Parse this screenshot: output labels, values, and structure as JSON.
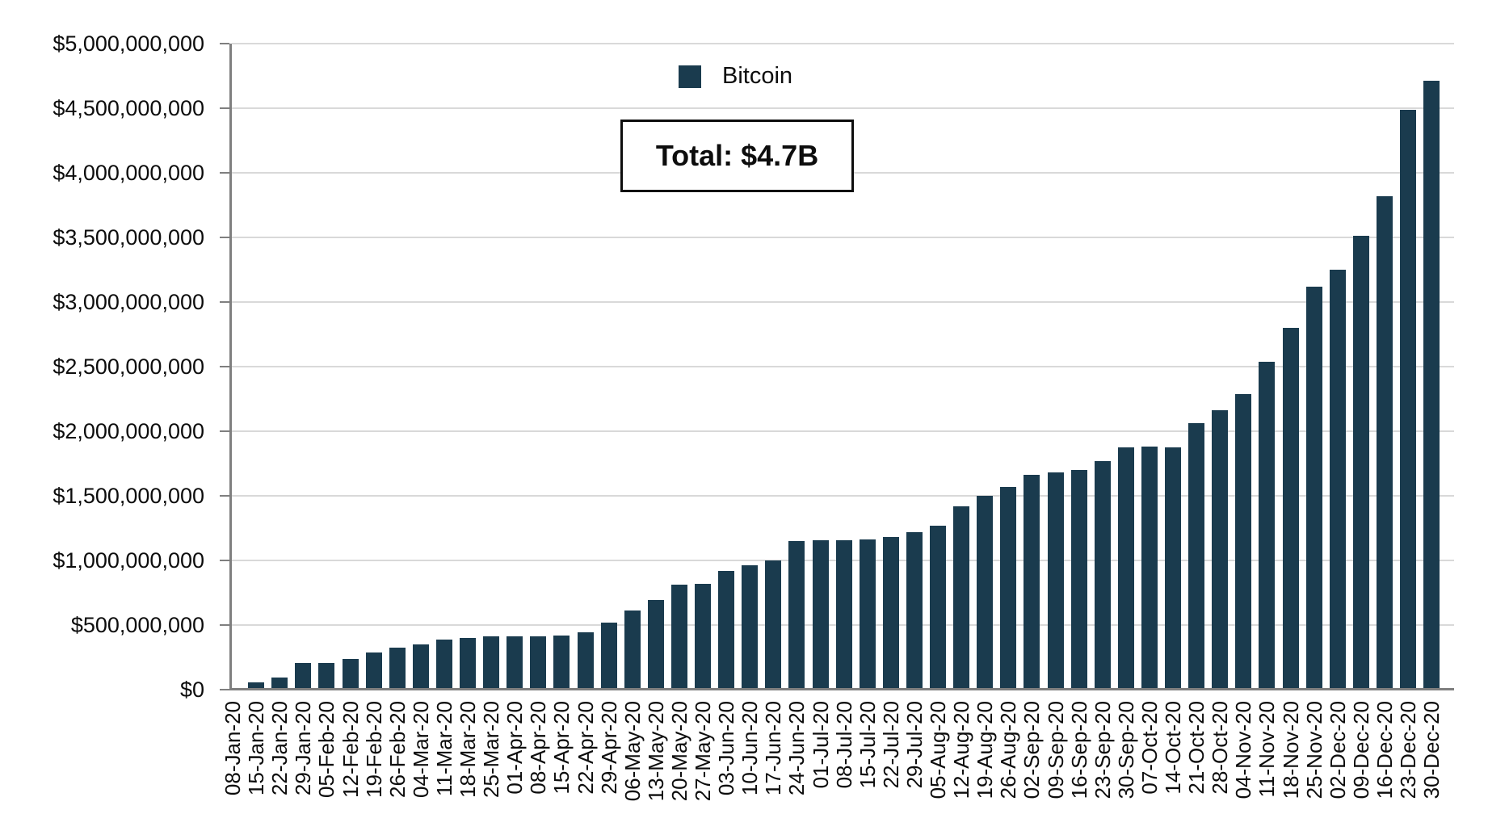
{
  "legend": {
    "series_label": "Bitcoin"
  },
  "annotation": {
    "total_label": "Total: $4.7B"
  },
  "colors": {
    "bar": "#1a3b4e",
    "gridline": "#d9d9d9",
    "axis": "#7f7f7f",
    "text": "#0d0d0d"
  },
  "chart_data": {
    "type": "bar",
    "title": "",
    "xlabel": "",
    "ylabel": "",
    "series_name": "Bitcoin",
    "legend_position": "top-center",
    "grid": true,
    "ylim": [
      0,
      5000000000
    ],
    "ytick_interval": 500000000,
    "ytick_labels": [
      "$0",
      "$500,000,000",
      "$1,000,000,000",
      "$1,500,000,000",
      "$2,000,000,000",
      "$2,500,000,000",
      "$3,000,000,000",
      "$3,500,000,000",
      "$4,000,000,000",
      "$4,500,000,000",
      "$5,000,000,000"
    ],
    "annotation_total": "Total: $4.7B",
    "categories": [
      "08-Jan-20",
      "15-Jan-20",
      "22-Jan-20",
      "29-Jan-20",
      "05-Feb-20",
      "12-Feb-20",
      "19-Feb-20",
      "26-Feb-20",
      "04-Mar-20",
      "11-Mar-20",
      "18-Mar-20",
      "25-Mar-20",
      "01-Apr-20",
      "08-Apr-20",
      "15-Apr-20",
      "22-Apr-20",
      "29-Apr-20",
      "06-May-20",
      "13-May-20",
      "20-May-20",
      "27-May-20",
      "03-Jun-20",
      "10-Jun-20",
      "17-Jun-20",
      "24-Jun-20",
      "01-Jul-20",
      "08-Jul-20",
      "15-Jul-20",
      "22-Jul-20",
      "29-Jul-20",
      "05-Aug-20",
      "12-Aug-20",
      "19-Aug-20",
      "26-Aug-20",
      "02-Sep-20",
      "09-Sep-20",
      "16-Sep-20",
      "23-Sep-20",
      "30-Sep-20",
      "07-Oct-20",
      "14-Oct-20",
      "21-Oct-20",
      "28-Oct-20",
      "04-Nov-20",
      "11-Nov-20",
      "18-Nov-20",
      "25-Nov-20",
      "02-Dec-20",
      "09-Dec-20",
      "16-Dec-20",
      "23-Dec-20",
      "30-Dec-20"
    ],
    "values": [
      5000000,
      55000000,
      95000000,
      205000000,
      205000000,
      240000000,
      290000000,
      325000000,
      350000000,
      385000000,
      400000000,
      410000000,
      410000000,
      410000000,
      420000000,
      445000000,
      520000000,
      610000000,
      695000000,
      810000000,
      820000000,
      920000000,
      960000000,
      1000000000,
      1150000000,
      1155000000,
      1155000000,
      1160000000,
      1180000000,
      1220000000,
      1270000000,
      1420000000,
      1500000000,
      1570000000,
      1660000000,
      1680000000,
      1700000000,
      1770000000,
      1875000000,
      1880000000,
      1875000000,
      2060000000,
      2160000000,
      2290000000,
      2540000000,
      2800000000,
      3120000000,
      3250000000,
      3510000000,
      3820000000,
      4490000000,
      4710000000
    ]
  }
}
